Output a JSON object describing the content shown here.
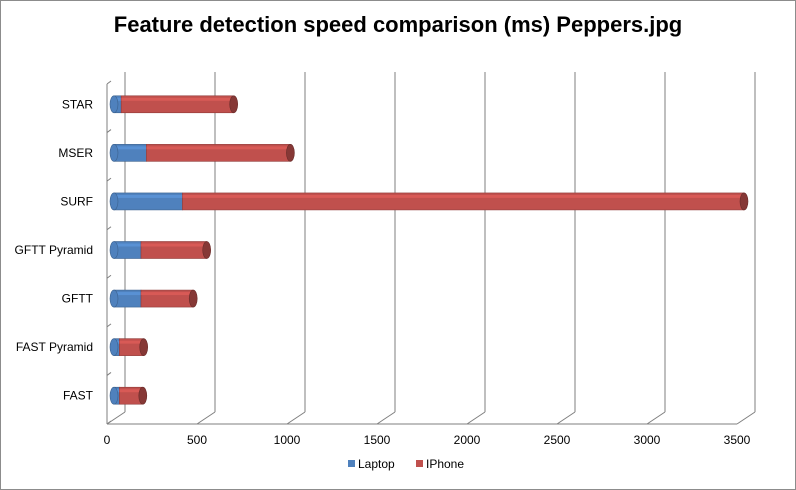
{
  "chart_data": {
    "type": "bar",
    "orientation": "horizontal",
    "stacked": true,
    "style": "3d-cylinder",
    "title": "Feature detection speed comparison (ms) Peppers.jpg",
    "xlabel": "",
    "ylabel": "",
    "categories": [
      "FAST",
      "FAST Pyramid",
      "GFTT",
      "GFTT Pyramid",
      "SURF",
      "MSER",
      "STAR"
    ],
    "series": [
      {
        "name": "Laptop",
        "color": "#4f81bd",
        "values": [
          30,
          30,
          150,
          150,
          380,
          180,
          40
        ]
      },
      {
        "name": "IPhone",
        "color": "#c0504d",
        "values": [
          130,
          135,
          290,
          365,
          3120,
          800,
          625
        ]
      }
    ],
    "xlim": [
      0,
      3500
    ],
    "xticks": [
      0,
      500,
      1000,
      1500,
      2000,
      2500,
      3000,
      3500
    ],
    "grid": true,
    "legend_position": "bottom"
  }
}
